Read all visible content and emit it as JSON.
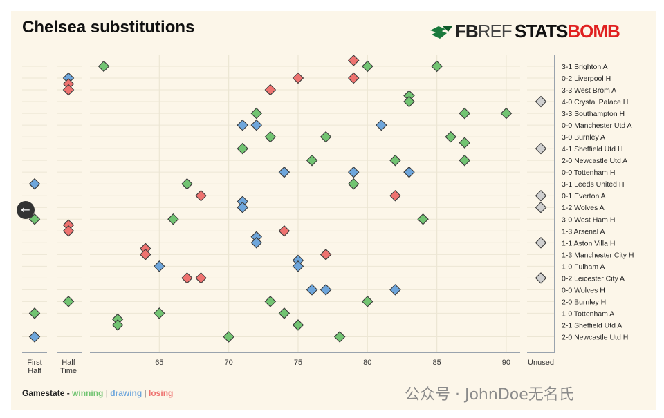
{
  "title": "Chelsea substitutions",
  "logos": {
    "fbref_prefix": "FB",
    "fbref_suffix": "REF",
    "statsbomb_prefix": "STATS",
    "statsbomb_suffix": "BOMB"
  },
  "legend": {
    "prefix": "Gamestate -",
    "winning": "winning",
    "drawing": "drawing",
    "losing": "losing",
    "separator": "|"
  },
  "watermark": "公众号 · JohnDoe无名氏",
  "back_button_icon": "arrow-left-icon",
  "colors": {
    "winning": "#72c472",
    "drawing": "#6ea6dc",
    "losing": "#ee7370",
    "unused": "#cfcfcf",
    "background": "#fcf6e9",
    "grid": "#ece6d4"
  },
  "chart_data": {
    "type": "scatter",
    "title": "Chelsea substitutions",
    "x_panels": [
      "First Half",
      "Half Time",
      "65",
      "70",
      "75",
      "80",
      "85",
      "90",
      "Unused"
    ],
    "x_ticks": [
      65,
      70,
      75,
      80,
      85,
      90
    ],
    "x_range": [
      60,
      91
    ],
    "legend_placement": "bottom-left",
    "grid": true,
    "matches": [
      "3-1 Brighton A",
      "0-2 Liverpool H",
      "3-3 West Brom A",
      "4-0 Crystal Palace H",
      "3-3 Southampton H",
      "0-0 Manchester Utd A",
      "3-0 Burnley A",
      "4-1 Sheffield Utd H",
      "2-0 Newcastle Utd A",
      "0-0 Tottenham H",
      "3-1 Leeds United H",
      "0-1 Everton A",
      "1-2 Wolves A",
      "3-0 West Ham H",
      "1-3 Arsenal A",
      "1-1 Aston Villa H",
      "1-3 Manchester City H",
      "1-0 Fulham A",
      "0-2 Leicester City A",
      "0-0 Wolves H",
      "2-0 Burnley H",
      "1-0 Tottenham A",
      "2-1 Sheffield Utd A",
      "2-0 Newcastle Utd H"
    ],
    "substitutions": [
      {
        "match": 0,
        "minute": 61,
        "state": "winning"
      },
      {
        "match": 0,
        "minute": 80,
        "state": "winning"
      },
      {
        "match": 0,
        "minute": 85,
        "state": "winning"
      },
      {
        "match": 0,
        "minute": 79,
        "state": "losing",
        "offset": -1
      },
      {
        "match": 1,
        "minute": "HT",
        "state": "drawing"
      },
      {
        "match": 1,
        "minute": 75,
        "state": "losing"
      },
      {
        "match": 1,
        "minute": 79,
        "state": "losing"
      },
      {
        "match": 2,
        "minute": "HT",
        "state": "losing",
        "offset": -1
      },
      {
        "match": 2,
        "minute": "HT",
        "state": "losing"
      },
      {
        "match": 2,
        "minute": 73,
        "state": "losing"
      },
      {
        "match": 3,
        "minute": 83,
        "state": "winning",
        "offset": -1
      },
      {
        "match": 3,
        "minute": 83,
        "state": "winning"
      },
      {
        "match": 3,
        "minute": "Unused",
        "state": "unused"
      },
      {
        "match": 4,
        "minute": 72,
        "state": "winning"
      },
      {
        "match": 4,
        "minute": 87,
        "state": "winning"
      },
      {
        "match": 4,
        "minute": 90,
        "state": "winning"
      },
      {
        "match": 5,
        "minute": 71,
        "state": "drawing"
      },
      {
        "match": 5,
        "minute": 72,
        "state": "drawing"
      },
      {
        "match": 5,
        "minute": 81,
        "state": "drawing"
      },
      {
        "match": 6,
        "minute": 73,
        "state": "winning"
      },
      {
        "match": 6,
        "minute": 77,
        "state": "winning"
      },
      {
        "match": 6,
        "minute": 86,
        "state": "winning"
      },
      {
        "match": 7,
        "minute": 71,
        "state": "winning"
      },
      {
        "match": 7,
        "minute": 87,
        "state": "winning",
        "offset": -1
      },
      {
        "match": 7,
        "minute": "Unused",
        "state": "unused"
      },
      {
        "match": 8,
        "minute": 76,
        "state": "winning"
      },
      {
        "match": 8,
        "minute": 82,
        "state": "winning"
      },
      {
        "match": 8,
        "minute": 87,
        "state": "winning"
      },
      {
        "match": 9,
        "minute": 74,
        "state": "drawing"
      },
      {
        "match": 9,
        "minute": 79,
        "state": "drawing"
      },
      {
        "match": 9,
        "minute": 83,
        "state": "drawing"
      },
      {
        "match": 10,
        "minute": "FH",
        "state": "drawing"
      },
      {
        "match": 10,
        "minute": 67,
        "state": "winning"
      },
      {
        "match": 10,
        "minute": 79,
        "state": "winning"
      },
      {
        "match": 11,
        "minute": 68,
        "state": "losing"
      },
      {
        "match": 11,
        "minute": 82,
        "state": "losing"
      },
      {
        "match": 11,
        "minute": "Unused",
        "state": "unused"
      },
      {
        "match": 12,
        "minute": 71,
        "state": "drawing",
        "offset": -1
      },
      {
        "match": 12,
        "minute": 71,
        "state": "drawing"
      },
      {
        "match": 12,
        "minute": "Unused",
        "state": "unused"
      },
      {
        "match": 13,
        "minute": "FH",
        "state": "winning"
      },
      {
        "match": 13,
        "minute": 66,
        "state": "winning"
      },
      {
        "match": 13,
        "minute": 84,
        "state": "winning"
      },
      {
        "match": 14,
        "minute": "HT",
        "state": "losing",
        "offset": -1
      },
      {
        "match": 14,
        "minute": "HT",
        "state": "losing"
      },
      {
        "match": 14,
        "minute": 74,
        "state": "losing"
      },
      {
        "match": 15,
        "minute": 72,
        "state": "drawing",
        "offset": -1
      },
      {
        "match": 15,
        "minute": 72,
        "state": "drawing"
      },
      {
        "match": 15,
        "minute": "Unused",
        "state": "unused"
      },
      {
        "match": 16,
        "minute": 64,
        "state": "losing",
        "offset": -1
      },
      {
        "match": 16,
        "minute": 64,
        "state": "losing"
      },
      {
        "match": 16,
        "minute": 77,
        "state": "losing"
      },
      {
        "match": 17,
        "minute": 65,
        "state": "drawing"
      },
      {
        "match": 17,
        "minute": 75,
        "state": "drawing",
        "offset": -1
      },
      {
        "match": 17,
        "minute": 75,
        "state": "drawing"
      },
      {
        "match": 18,
        "minute": 67,
        "state": "losing"
      },
      {
        "match": 18,
        "minute": 68,
        "state": "losing"
      },
      {
        "match": 18,
        "minute": "Unused",
        "state": "unused"
      },
      {
        "match": 19,
        "minute": 76,
        "state": "drawing"
      },
      {
        "match": 19,
        "minute": 77,
        "state": "drawing"
      },
      {
        "match": 19,
        "minute": 82,
        "state": "drawing"
      },
      {
        "match": 20,
        "minute": "HT",
        "state": "winning"
      },
      {
        "match": 20,
        "minute": 73,
        "state": "winning"
      },
      {
        "match": 20,
        "minute": 80,
        "state": "winning"
      },
      {
        "match": 21,
        "minute": "FH",
        "state": "winning"
      },
      {
        "match": 21,
        "minute": 65,
        "state": "winning"
      },
      {
        "match": 21,
        "minute": 74,
        "state": "winning"
      },
      {
        "match": 22,
        "minute": 62,
        "state": "winning",
        "offset": -1
      },
      {
        "match": 22,
        "minute": 62,
        "state": "winning"
      },
      {
        "match": 22,
        "minute": 75,
        "state": "winning"
      },
      {
        "match": 23,
        "minute": "FH",
        "state": "drawing"
      },
      {
        "match": 23,
        "minute": 70,
        "state": "winning"
      },
      {
        "match": 23,
        "minute": 78,
        "state": "winning"
      }
    ]
  }
}
